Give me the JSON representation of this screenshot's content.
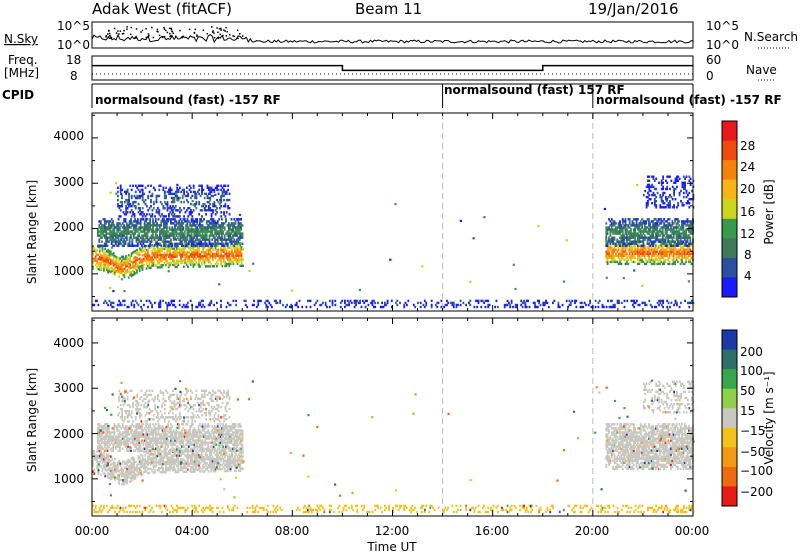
{
  "header": {
    "station": "Adak West (fitACF)",
    "beam": "Beam 11",
    "date": "19/Jan/2016"
  },
  "noise_panel": {
    "left_label": "N.Sky",
    "right_label": "N.Search",
    "left_ticks": [
      "10^5",
      "10^0"
    ],
    "right_ticks": [
      "10^5",
      "10^0"
    ]
  },
  "freq_panel": {
    "left_label_line1": "Freq.",
    "left_label_line2": "[MHz]",
    "right_label": "Nave",
    "left_ticks": [
      "18",
      "8"
    ],
    "right_ticks": [
      "60",
      "0"
    ]
  },
  "cpid_panel": {
    "label": "CPID",
    "segments": [
      "normalsound (fast) -157 RF",
      "normalsound (fast) 157 RF",
      "normalsound (fast) -157 RF"
    ]
  },
  "x_axis": {
    "label": "Time UT",
    "ticks": [
      "00:00",
      "04:00",
      "08:00",
      "12:00",
      "16:00",
      "20:00",
      "00:00"
    ]
  },
  "power_panel": {
    "ylabel": "Slant Range [km]",
    "yticks": [
      "4000",
      "3000",
      "2000",
      "1000"
    ],
    "colorbar_label": "Power [dB]",
    "colorbar_ticks": [
      "28",
      "24",
      "20",
      "16",
      "12",
      "8",
      "4"
    ],
    "colorbar_colors": [
      "#e8181c",
      "#f04a10",
      "#f6820c",
      "#f7b416",
      "#c8d61c",
      "#3a9a4a",
      "#3f7a5a",
      "#2a50a0",
      "#1a1aff"
    ]
  },
  "velocity_panel": {
    "ylabel": "Slant Range [km]",
    "yticks": [
      "4000",
      "3000",
      "2000",
      "1000"
    ],
    "colorbar_label": "Velocity [m s⁻¹]",
    "colorbar_ticks": [
      "200",
      "100",
      "50",
      "15",
      "−15",
      "−50",
      "−100",
      "−200"
    ],
    "colorbar_colors": [
      "#1a3aa8",
      "#2f6f6a",
      "#3aa64a",
      "#8ed04a",
      "#c8c8c0",
      "#f2c21a",
      "#f39a14",
      "#ee6a10",
      "#e81a14"
    ]
  },
  "chart_data": {
    "type": "heatmap",
    "x_range_hours": [
      0,
      24
    ],
    "y_range_km": [
      180,
      4550
    ],
    "vertical_markers_hours": [
      14,
      20
    ],
    "cpid_boundaries_hours": [
      0,
      14,
      20,
      24
    ],
    "frequency_mhz": [
      {
        "start": 0,
        "end": 10,
        "value": 17
      },
      {
        "start": 10,
        "end": 18,
        "value": 14
      },
      {
        "start": 18,
        "end": 24,
        "value": 17
      }
    ],
    "nave": 22,
    "noise_sky_level": 0.3,
    "echo_regions": [
      {
        "name": "main-band",
        "t_start": 0,
        "t_end": 6.0,
        "range_center_km": 1350,
        "range_halfwidth_km": 250,
        "power_db": 26,
        "velocity_ms": 0
      },
      {
        "name": "upper-band",
        "t_start": 0.2,
        "t_end": 6.0,
        "range_center_km": 1900,
        "range_halfwidth_km": 300,
        "power_db": 12,
        "velocity_ms": 0
      },
      {
        "name": "high-patch",
        "t_start": 1.0,
        "t_end": 5.5,
        "range_center_km": 2600,
        "range_halfwidth_km": 350,
        "power_db": 8,
        "velocity_ms": 0
      },
      {
        "name": "near-range",
        "t_start": 0,
        "t_end": 24,
        "range_center_km": 340,
        "range_halfwidth_km": 90,
        "power_db": 6,
        "velocity_ms": -30
      },
      {
        "name": "main-band-late",
        "t_start": 20.5,
        "t_end": 24,
        "range_center_km": 1450,
        "range_halfwidth_km": 250,
        "power_db": 26,
        "velocity_ms": 0
      },
      {
        "name": "upper-band-late",
        "t_start": 20.5,
        "t_end": 24,
        "range_center_km": 1900,
        "range_halfwidth_km": 300,
        "power_db": 12,
        "velocity_ms": 0
      },
      {
        "name": "high-patch-late",
        "t_start": 22.0,
        "t_end": 24,
        "range_center_km": 2800,
        "range_halfwidth_km": 350,
        "power_db": 6,
        "velocity_ms": 0
      }
    ]
  }
}
